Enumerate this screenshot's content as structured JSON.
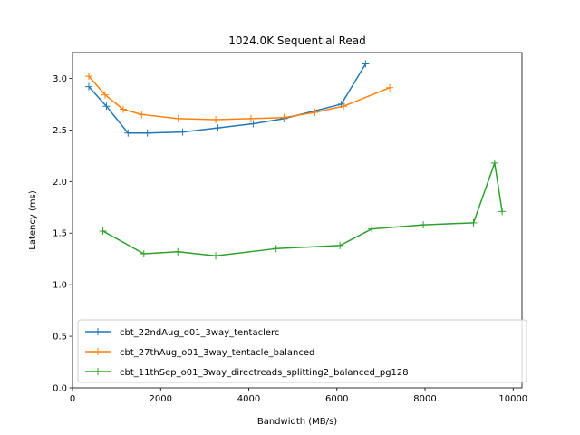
{
  "chart_data": {
    "type": "line",
    "title": "1024.0K  Sequential Read",
    "xlabel": "Bandwidth (MB/s)",
    "ylabel": "Latency (ms)",
    "xlim": [
      0,
      10200
    ],
    "ylim": [
      0,
      3.25
    ],
    "xticks": [
      0,
      2000,
      4000,
      6000,
      8000,
      10000
    ],
    "yticks": [
      0.0,
      0.5,
      1.0,
      1.5,
      2.0,
      2.5,
      3.0
    ],
    "xtick_labels": [
      "0",
      "2000",
      "4000",
      "6000",
      "8000",
      "10000"
    ],
    "ytick_labels": [
      "0.0",
      "0.5",
      "1.0",
      "1.5",
      "2.0",
      "2.5",
      "3.0"
    ],
    "grid": false,
    "legend_position": "lower-left",
    "marker": "plus",
    "series": [
      {
        "name": "cbt_22ndAug_o01_3way_tentaclerc",
        "color": "#1f77b4",
        "x": [
          370,
          770,
          1260,
          1700,
          2500,
          3300,
          4100,
          4800,
          6100,
          6650
        ],
        "y": [
          2.92,
          2.73,
          2.47,
          2.47,
          2.48,
          2.52,
          2.56,
          2.61,
          2.75,
          3.14
        ]
      },
      {
        "name": "cbt_27thAug_o01_3way_tentacle_balanced",
        "color": "#ff7f0e",
        "x": [
          370,
          740,
          1150,
          1570,
          2400,
          3250,
          4050,
          4800,
          5500,
          6150,
          7200
        ],
        "y": [
          3.02,
          2.84,
          2.7,
          2.65,
          2.61,
          2.6,
          2.61,
          2.62,
          2.67,
          2.73,
          2.91
        ]
      },
      {
        "name": "cbt_11thSep_o01_3way_directreads_splitting2_balanced_pg128",
        "color": "#2ca02c",
        "x": [
          690,
          1620,
          2390,
          3250,
          4620,
          6070,
          6790,
          7960,
          9100,
          9580,
          9750
        ],
        "y": [
          1.52,
          1.3,
          1.32,
          1.28,
          1.35,
          1.38,
          1.54,
          1.58,
          1.6,
          2.18,
          1.71
        ]
      }
    ]
  }
}
